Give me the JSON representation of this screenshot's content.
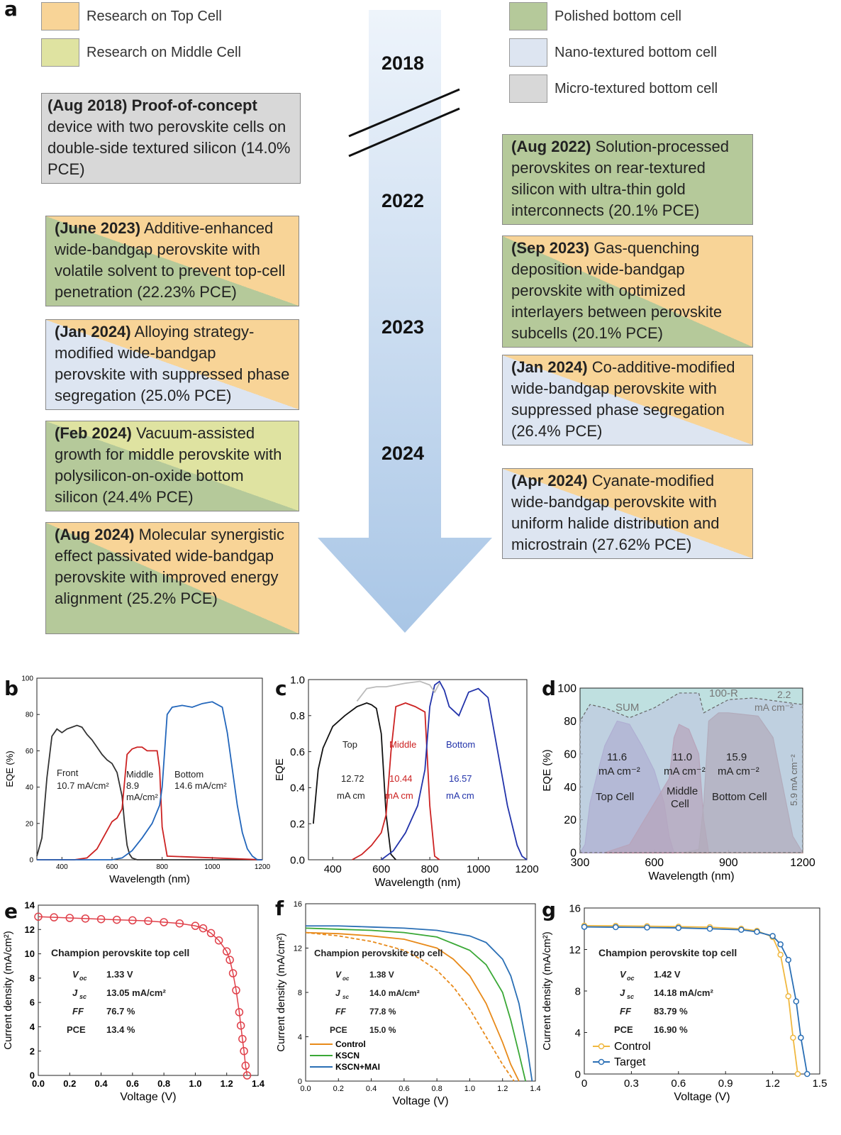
{
  "panel_a": {
    "letter": "a",
    "legend_left": [
      {
        "label": "Research on Top Cell",
        "color": "#f8d497"
      },
      {
        "label": "Research on Middle Cell",
        "color": "#dfe3a1"
      }
    ],
    "legend_right": [
      {
        "label": "Polished bottom cell",
        "color": "#b5c99a"
      },
      {
        "label": "Nano-textured bottom cell",
        "color": "#dde5f1"
      },
      {
        "label": "Micro-textured bottom cell",
        "color": "#d8d8d8"
      }
    ],
    "years": [
      "2018",
      "2022",
      "2023",
      "2024"
    ],
    "boxes_left": [
      {
        "date": "(Aug 2018) Proof-of-concept",
        "text": "device with two perovskite cells on double-side textured silicon (14.0% PCE)"
      },
      {
        "date": "(June 2023)",
        "text": "Additive-enhanced wide-bandgap perovskite with volatile solvent to prevent top-cell penetration (22.23% PCE)"
      },
      {
        "date": "(Jan 2024)",
        "text": "Alloying strategy-modified wide-bandgap perovskite with suppressed phase segregation (25.0% PCE)"
      },
      {
        "date": "(Feb 2024)",
        "text": "Vacuum-assisted growth for middle perovskite with polysilicon-on-oxide bottom silicon (24.4% PCE)"
      },
      {
        "date": "(Aug 2024)",
        "text": "Molecular synergistic effect passivated wide-bandgap perovskite with improved energy alignment (25.2% PCE)"
      }
    ],
    "boxes_right": [
      {
        "date": "(Aug 2022)",
        "text": "Solution-processed perovskites on rear-textured silicon with ultra-thin gold interconnects (20.1% PCE)"
      },
      {
        "date": "(Sep 2023)",
        "text": "Gas-quenching deposition wide-bandgap perovskite with optimized interlayers between perovskite subcells (20.1% PCE)"
      },
      {
        "date": "(Jan 2024)",
        "text": "Co-additive-modified wide-bandgap perovskite with suppressed phase segregation (26.4% PCE)"
      },
      {
        "date": "(Apr 2024)",
        "text": "Cyanate-modified wide-bandgap perovskite with uniform halide distribution and microstrain (27.62% PCE)"
      }
    ]
  },
  "panels": {
    "b": {
      "letter": "b",
      "xlabel": "Wavelength (nm)",
      "ylabel": "EQE (%)",
      "labels": [
        "Front",
        "10.7 mA/cm²",
        "Middle",
        "8.9",
        "mA/cm²",
        "Bottom",
        "14.6 mA/cm²"
      ]
    },
    "c": {
      "letter": "c",
      "xlabel": "Wavelength (nm)",
      "ylabel": "EQE",
      "labels": [
        "Top",
        "12.72",
        "mA cm",
        "Middle",
        "10.44",
        "mA cm",
        "Bottom",
        "16.57",
        "mA cm"
      ]
    },
    "d": {
      "letter": "d",
      "xlabel": "Wavelength (nm)",
      "ylabel": "EQE (%)",
      "labels": [
        "SUM",
        "100-R",
        "2.2",
        "mA cm⁻²",
        "11.6",
        "mA cm⁻²",
        "Top Cell",
        "11.0",
        "mA cm⁻²",
        "Middle",
        "Cell",
        "15.9",
        "mA cm⁻²",
        "Bottom Cell",
        "5.9 mA cm⁻²"
      ]
    },
    "e": {
      "letter": "e",
      "xlabel": "Voltage (V)",
      "ylabel": "Current density (mA/cm²)",
      "title": "Champion perovskite top cell",
      "params": [
        [
          "V_oc",
          "1.33  V"
        ],
        [
          "J_sc",
          "13.05 mA/cm²"
        ],
        [
          "FF",
          "76.7 %"
        ],
        [
          "PCE",
          "13.4 %"
        ]
      ]
    },
    "f": {
      "letter": "f",
      "xlabel": "Voltage (V)",
      "ylabel": "Current density (mA/cm²)",
      "title": "Champion perovskite top cell",
      "params": [
        [
          "V_oc",
          "1.38  V"
        ],
        [
          "J_sc",
          "14.0 mA/cm²"
        ],
        [
          "FF",
          "77.8 %"
        ],
        [
          "PCE",
          "15.0 %"
        ]
      ],
      "legend": [
        "Control",
        "KSCN",
        "KSCN+MAI"
      ]
    },
    "g": {
      "letter": "g",
      "xlabel": "Voltage (V)",
      "ylabel": "Current density (mA/cm²)",
      "title": "Champion perovskite top cell",
      "params": [
        [
          "V_oc",
          "1.42  V"
        ],
        [
          "J_sc",
          "14.18 mA/cm²"
        ],
        [
          "FF",
          "83.79 %"
        ],
        [
          "PCE",
          "16.90 %"
        ]
      ],
      "legend": [
        "Control",
        "Target"
      ]
    }
  },
  "chart_data": [
    {
      "panel": "b",
      "type": "line",
      "xlim": [
        300,
        1200
      ],
      "ylim": [
        0,
        100
      ],
      "xticks": [
        400,
        600,
        800,
        1000,
        1200
      ],
      "yticks": [
        0,
        20,
        40,
        60,
        80,
        100
      ],
      "series": [
        {
          "color": "#333333",
          "x": [
            300,
            320,
            340,
            360,
            380,
            400,
            420,
            440,
            460,
            480,
            500,
            520,
            540,
            560,
            580,
            600,
            620,
            640,
            650,
            660,
            670,
            680,
            700,
            750,
            800,
            1200
          ],
          "y": [
            2,
            12,
            45,
            68,
            72,
            70,
            72,
            73,
            74,
            73,
            69,
            66,
            62,
            58,
            55,
            53,
            48,
            35,
            20,
            8,
            3,
            1,
            0,
            0,
            0,
            0
          ]
        },
        {
          "color": "#cc2222",
          "x": [
            300,
            450,
            500,
            540,
            580,
            600,
            620,
            640,
            660,
            680,
            700,
            720,
            740,
            760,
            780,
            790,
            800,
            820,
            1200
          ],
          "y": [
            0,
            0,
            1,
            6,
            16,
            21,
            23,
            28,
            58,
            61,
            62,
            62,
            60,
            60,
            60,
            50,
            18,
            2,
            0
          ]
        },
        {
          "color": "#2266bb",
          "x": [
            300,
            600,
            640,
            680,
            720,
            760,
            790,
            800,
            810,
            820,
            840,
            880,
            920,
            960,
            1000,
            1040,
            1060,
            1080,
            1100,
            1120,
            1140,
            1160,
            1180,
            1200
          ],
          "y": [
            0,
            0,
            1,
            5,
            12,
            20,
            30,
            40,
            60,
            80,
            84,
            85,
            84,
            86,
            87,
            84,
            70,
            50,
            30,
            15,
            6,
            2,
            0,
            0
          ]
        }
      ]
    },
    {
      "panel": "c",
      "type": "line",
      "xlim": [
        300,
        1200
      ],
      "ylim": [
        0,
        1.0
      ],
      "xticks": [
        400,
        600,
        800,
        1000,
        1200
      ],
      "yticks": [
        0.0,
        0.2,
        0.4,
        0.6,
        0.8,
        1.0
      ],
      "series": [
        {
          "color": "#111111",
          "x": [
            320,
            340,
            360,
            400,
            450,
            500,
            540,
            560,
            580,
            600,
            620,
            640,
            660
          ],
          "y": [
            0.2,
            0.5,
            0.62,
            0.74,
            0.8,
            0.85,
            0.87,
            0.86,
            0.84,
            0.7,
            0.25,
            0.03,
            0
          ]
        },
        {
          "color": "#cc2222",
          "x": [
            480,
            520,
            560,
            600,
            620,
            640,
            660,
            700,
            740,
            780,
            800,
            820,
            840
          ],
          "y": [
            0,
            0.03,
            0.08,
            0.15,
            0.25,
            0.6,
            0.85,
            0.87,
            0.85,
            0.82,
            0.3,
            0.02,
            0
          ]
        },
        {
          "color": "#2233aa",
          "x": [
            600,
            650,
            700,
            750,
            780,
            800,
            820,
            840,
            860,
            880,
            920,
            960,
            1000,
            1040,
            1080,
            1120,
            1160,
            1180,
            1200
          ],
          "y": [
            0,
            0.05,
            0.15,
            0.3,
            0.5,
            0.85,
            0.97,
            0.99,
            0.94,
            0.85,
            0.8,
            0.93,
            0.95,
            0.9,
            0.6,
            0.3,
            0.08,
            0.02,
            0
          ]
        },
        {
          "color": "#bbbbbb",
          "x": [
            500,
            540,
            580,
            620,
            660,
            700,
            760,
            800,
            820,
            840
          ],
          "y": [
            0.88,
            0.95,
            0.96,
            0.96,
            0.97,
            0.98,
            0.99,
            0.97,
            0.93,
            0.98
          ]
        }
      ]
    },
    {
      "panel": "d",
      "type": "area",
      "xlim": [
        300,
        1200
      ],
      "ylim": [
        0,
        100
      ],
      "xticks": [
        300,
        600,
        900,
        1200
      ],
      "yticks": [
        0,
        20,
        40,
        60,
        80,
        100
      ],
      "series": [
        {
          "color": "#7f5ba8",
          "x": [
            300,
            320,
            340,
            370,
            400,
            450,
            500,
            550,
            600,
            640,
            660,
            680
          ],
          "y": [
            0,
            5,
            30,
            48,
            65,
            80,
            78,
            65,
            50,
            30,
            10,
            0
          ]
        },
        {
          "color": "#a0304a",
          "x": [
            400,
            500,
            600,
            640,
            660,
            680,
            700,
            740,
            780,
            800,
            820
          ],
          "y": [
            0,
            5,
            30,
            40,
            45,
            70,
            78,
            75,
            60,
            20,
            0
          ]
        },
        {
          "color": "#8a4e4e",
          "x": [
            720,
            780,
            800,
            820,
            860,
            900,
            960,
            1020,
            1080,
            1120,
            1160,
            1200
          ],
          "y": [
            0,
            2,
            30,
            80,
            85,
            85,
            84,
            83,
            70,
            40,
            10,
            0
          ]
        },
        {
          "color": "#bfcbe0",
          "x": [
            300,
            340,
            400,
            500,
            600,
            700,
            780,
            800,
            900,
            1000,
            1100,
            1200
          ],
          "y": [
            80,
            90,
            88,
            82,
            88,
            97,
            97,
            85,
            93,
            94,
            92,
            90
          ]
        }
      ]
    },
    {
      "panel": "e",
      "type": "scatter",
      "xlim": [
        0.0,
        1.4
      ],
      "ylim": [
        0,
        14
      ],
      "xticks": [
        0.0,
        0.2,
        0.4,
        0.6,
        0.8,
        1.0,
        1.2,
        1.4
      ],
      "yticks": [
        0,
        2,
        4,
        6,
        8,
        10,
        12,
        14
      ],
      "series": [
        {
          "color": "#e0404a",
          "x": [
            0,
            0.1,
            0.2,
            0.3,
            0.4,
            0.5,
            0.6,
            0.7,
            0.8,
            0.9,
            1.0,
            1.05,
            1.1,
            1.15,
            1.2,
            1.22,
            1.24,
            1.26,
            1.28,
            1.29,
            1.3,
            1.31,
            1.32,
            1.33
          ],
          "y": [
            13.05,
            13.0,
            12.95,
            12.9,
            12.85,
            12.8,
            12.75,
            12.7,
            12.6,
            12.5,
            12.3,
            12.1,
            11.7,
            11.1,
            10.2,
            9.5,
            8.4,
            7.0,
            5.2,
            4.1,
            3.0,
            2.0,
            0.8,
            0
          ]
        }
      ]
    },
    {
      "panel": "f",
      "type": "line",
      "xlim": [
        0.0,
        1.4
      ],
      "ylim": [
        0,
        16
      ],
      "xticks": [
        0.0,
        0.2,
        0.4,
        0.6,
        0.8,
        1.0,
        1.2,
        1.4
      ],
      "yticks": [
        0,
        4,
        8,
        12,
        16
      ],
      "series": [
        {
          "name": "Control",
          "color": "#e88a1a",
          "x": [
            0,
            0.2,
            0.4,
            0.6,
            0.8,
            0.9,
            1.0,
            1.1,
            1.2,
            1.25,
            1.3
          ],
          "y": [
            13.4,
            13.3,
            13.1,
            12.8,
            12.0,
            11.0,
            9.5,
            7.0,
            3.5,
            1.5,
            0
          ]
        },
        {
          "name": "Control dashed",
          "color": "#e88a1a",
          "x": [
            0,
            0.2,
            0.4,
            0.6,
            0.7,
            0.8,
            0.9,
            1.0,
            1.1,
            1.2,
            1.27
          ],
          "y": [
            13.4,
            13.1,
            12.6,
            11.8,
            11.0,
            10.0,
            8.5,
            6.5,
            4.0,
            1.5,
            0
          ]
        },
        {
          "name": "KSCN",
          "color": "#3aa836",
          "x": [
            0,
            0.2,
            0.4,
            0.6,
            0.8,
            1.0,
            1.1,
            1.2,
            1.25,
            1.3,
            1.34
          ],
          "y": [
            13.8,
            13.7,
            13.6,
            13.4,
            13.0,
            11.8,
            10.5,
            8.0,
            5.5,
            2.5,
            0
          ]
        },
        {
          "name": "KSCN+MAI",
          "color": "#2a6fb5",
          "x": [
            0,
            0.2,
            0.4,
            0.6,
            0.8,
            1.0,
            1.1,
            1.2,
            1.25,
            1.3,
            1.35,
            1.38
          ],
          "y": [
            14.0,
            14.0,
            13.9,
            13.8,
            13.6,
            13.1,
            12.5,
            11.0,
            9.5,
            7.0,
            3.0,
            0
          ]
        }
      ]
    },
    {
      "panel": "g",
      "type": "line",
      "xlim": [
        0,
        1.5
      ],
      "ylim": [
        0,
        16
      ],
      "xticks": [
        0,
        0.3,
        0.6,
        0.9,
        1.2,
        1.5
      ],
      "yticks": [
        0,
        4,
        8,
        12,
        16
      ],
      "series": [
        {
          "name": "Control",
          "color": "#f0b840",
          "x": [
            0,
            0.2,
            0.4,
            0.6,
            0.8,
            1.0,
            1.1,
            1.2,
            1.25,
            1.3,
            1.33,
            1.36
          ],
          "y": [
            14.3,
            14.28,
            14.25,
            14.2,
            14.15,
            14.0,
            13.8,
            13.2,
            11.5,
            7.5,
            3.5,
            0
          ]
        },
        {
          "name": "Target",
          "color": "#2a6fb5",
          "x": [
            0,
            0.2,
            0.4,
            0.6,
            0.8,
            1.0,
            1.1,
            1.2,
            1.25,
            1.3,
            1.35,
            1.38,
            1.42
          ],
          "y": [
            14.18,
            14.15,
            14.12,
            14.08,
            14.0,
            13.9,
            13.7,
            13.3,
            12.5,
            11.0,
            7.0,
            3.5,
            0
          ]
        }
      ]
    }
  ]
}
